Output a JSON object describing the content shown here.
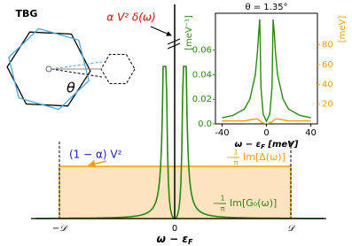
{
  "schematic": {
    "tbg_label": "TBG",
    "theta_symbol": "θ",
    "delta_label": "α V² δ(ω)",
    "box_label": "(1 − α) V²",
    "hyb_label": {
      "sign": "−",
      "num": "1",
      "den": "π",
      "text": "Im[Δ(ω)]"
    },
    "dos_label": {
      "sign": "−",
      "num": "1",
      "den": "π",
      "text": "Im[G₀(ω)]"
    },
    "x_labels": [
      "−𝒟",
      "0",
      "𝒟"
    ],
    "x_title": [
      "ω − ε",
      "F"
    ]
  },
  "inset": {
    "title": "θ = 1.35°",
    "ylabel": "[meV⁻¹]",
    "y2label": "[meV]",
    "xlabel": [
      "ω − ε",
      "F",
      " [meV]"
    ],
    "xlim": [
      -46,
      46
    ],
    "xticks": [
      -40,
      0,
      40
    ],
    "ylim": [
      0,
      0.09
    ],
    "yticks": [
      {
        "value": 0,
        "label": "0.0"
      },
      0.02,
      0.04,
      0.06
    ],
    "y2lim": [
      0,
      112
    ],
    "y2ticks": [
      20,
      40,
      60,
      80
    ],
    "x": [
      -40,
      -30,
      -20,
      -15,
      -10,
      -8,
      -7,
      -6,
      -5,
      -3,
      0,
      3,
      5,
      6,
      7,
      8,
      10,
      15,
      20,
      30,
      40
    ],
    "series": [
      {
        "color": "#2a8a10",
        "values": [
          0.005,
          0.007,
          0.012,
          0.02,
          0.04,
          0.06,
          0.075,
          0.085,
          0.03,
          0.008,
          0.002,
          0.008,
          0.03,
          0.085,
          0.075,
          0.06,
          0.04,
          0.02,
          0.012,
          0.007,
          0.005
        ]
      },
      {
        "color": "#f5a000",
        "axis": "y2",
        "values": [
          3,
          3,
          3,
          4,
          5,
          5,
          4,
          3,
          2,
          1,
          0,
          1,
          2,
          3,
          4,
          5,
          5,
          4,
          3,
          3,
          3
        ]
      }
    ]
  }
}
